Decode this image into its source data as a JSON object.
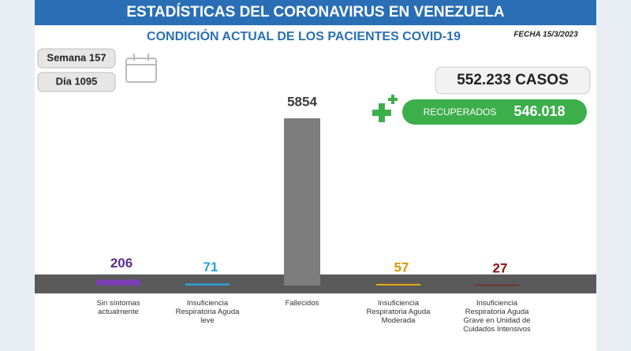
{
  "chart_data": {
    "type": "bar",
    "title": "ESTADÍSTICAS DEL CORONAVIRUS EN VENEZUELA",
    "subtitle": "CONDICIÓN ACTUAL DE LOS PACIENTES COVID-19",
    "date": "FECHA 15/3/2023",
    "week": "Semana 157",
    "day": "Día 1095",
    "cases": "552.233 CASOS",
    "recovered_label": "RECUPERADOS",
    "recovered": "546.018",
    "categories": [
      "Sin síntomas actualmente",
      "Insuficiencia Respiratoria Aguda leve",
      "Fallecidos",
      "Insuficiencia Respiratoria Aguda Moderada",
      "Insuficiencia Respiratoria Aguda Grave en Unidad de Cuidados Intensivos"
    ],
    "values": [
      206,
      71,
      5854,
      57,
      27
    ],
    "colors": [
      "#7b3fb3",
      "#2b9fd8",
      "#7d7d7d",
      "#e2a80c",
      "#8e1010"
    ],
    "label_colors": [
      "#5b2d8a",
      "#2b9fd8",
      "#3a3a3a",
      "#d89a00",
      "#8e1010"
    ]
  }
}
